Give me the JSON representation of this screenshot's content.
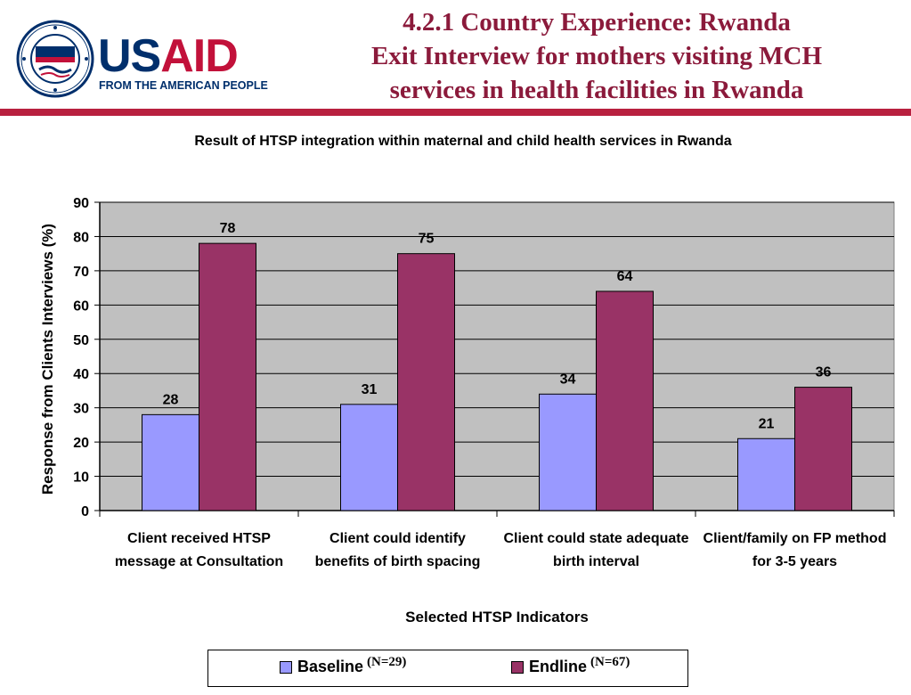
{
  "header": {
    "logo_text": "USAID",
    "logo_tagline": "FROM THE AMERICAN PEOPLE",
    "title_lines": [
      "4.2.1  Country Experience: Rwanda",
      "Exit Interview for mothers visiting MCH",
      "services in health facilities in Rwanda"
    ]
  },
  "colors": {
    "brand_blue": "#002F6C",
    "brand_red": "#C2113A",
    "title_color": "#8B1A3B",
    "rule": "#B8203F",
    "baseline": "#9999FF",
    "endline": "#993366",
    "plot_bg": "#C0C0C0"
  },
  "chart_data": {
    "type": "bar",
    "title": "Result of HTSP integration within maternal and child health services in Rwanda",
    "xlabel": "Selected HTSP Indicators",
    "ylabel": "Response from Clients Interviews (%)",
    "ylim": [
      0,
      90
    ],
    "yticks": [
      "0",
      "10",
      "20",
      "30",
      "40",
      "50",
      "60",
      "70",
      "80",
      "90"
    ],
    "grid": true,
    "legend_position": "bottom",
    "categories": [
      "Client received HTSP message at Consultation",
      "Client could identify benefits of birth spacing",
      "Client could state adequate birth interval",
      "Client/family on FP method for 3-5 years"
    ],
    "series": [
      {
        "name": "Baseline",
        "values": [
          28,
          31,
          34,
          21
        ]
      },
      {
        "name": "Endline",
        "values": [
          78,
          75,
          64,
          36
        ]
      }
    ]
  },
  "legend": {
    "baseline_label": "Baseline",
    "baseline_note": "(N=29)",
    "endline_label": "Endline",
    "endline_note": "(N=67)"
  }
}
